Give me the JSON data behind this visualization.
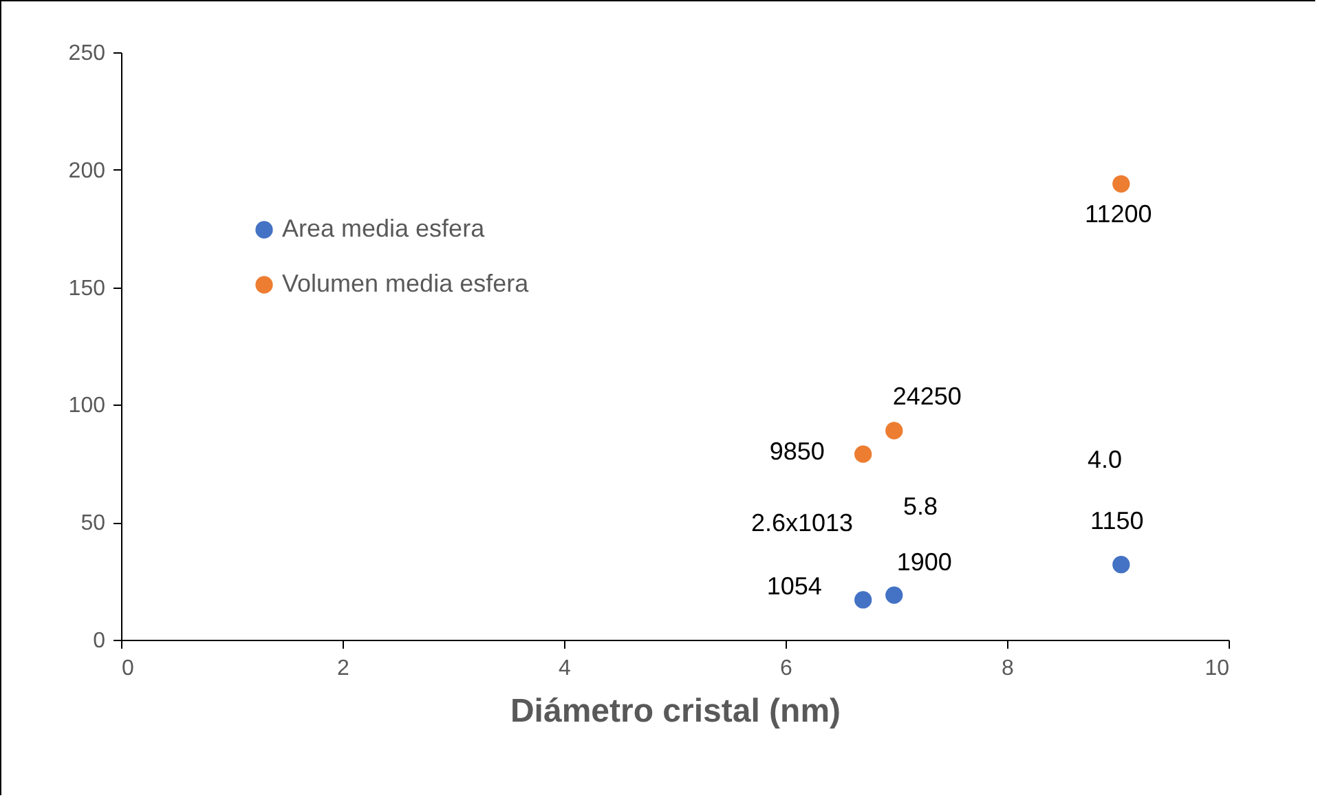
{
  "chart_data": {
    "type": "scatter",
    "xlabel": "Diámetro cristal (nm)",
    "xlim": [
      0,
      10
    ],
    "xticks": [
      0,
      2,
      4,
      6,
      8,
      10
    ],
    "ylim": [
      0,
      250
    ],
    "yticks": [
      0,
      50,
      100,
      150,
      200,
      250
    ],
    "grid": false,
    "legend": "top left",
    "marker": "circle",
    "series": [
      {
        "name": "Area media esfera",
        "color": "#4472c4",
        "x": [
          6.7,
          6.98,
          9.03
        ],
        "values": [
          17,
          19,
          32
        ]
      },
      {
        "name": "Volumen media esfera",
        "color": "#ed7d31",
        "x": [
          6.7,
          6.98,
          9.03
        ],
        "values": [
          79,
          89,
          194
        ]
      }
    ],
    "annotations": [
      {
        "text": "1054",
        "x": 6.7,
        "y": 17
      },
      {
        "text": "1900",
        "x": 6.98,
        "y": 19
      },
      {
        "text": "1150",
        "x": 9.03,
        "y": 32
      },
      {
        "text": "9850",
        "x": 6.7,
        "y": 79
      },
      {
        "text": "24250",
        "x": 6.98,
        "y": 89
      },
      {
        "text": "11200",
        "x": 9.03,
        "y": 194
      },
      "2.6x1013",
      "5.8",
      "4.0"
    ]
  }
}
